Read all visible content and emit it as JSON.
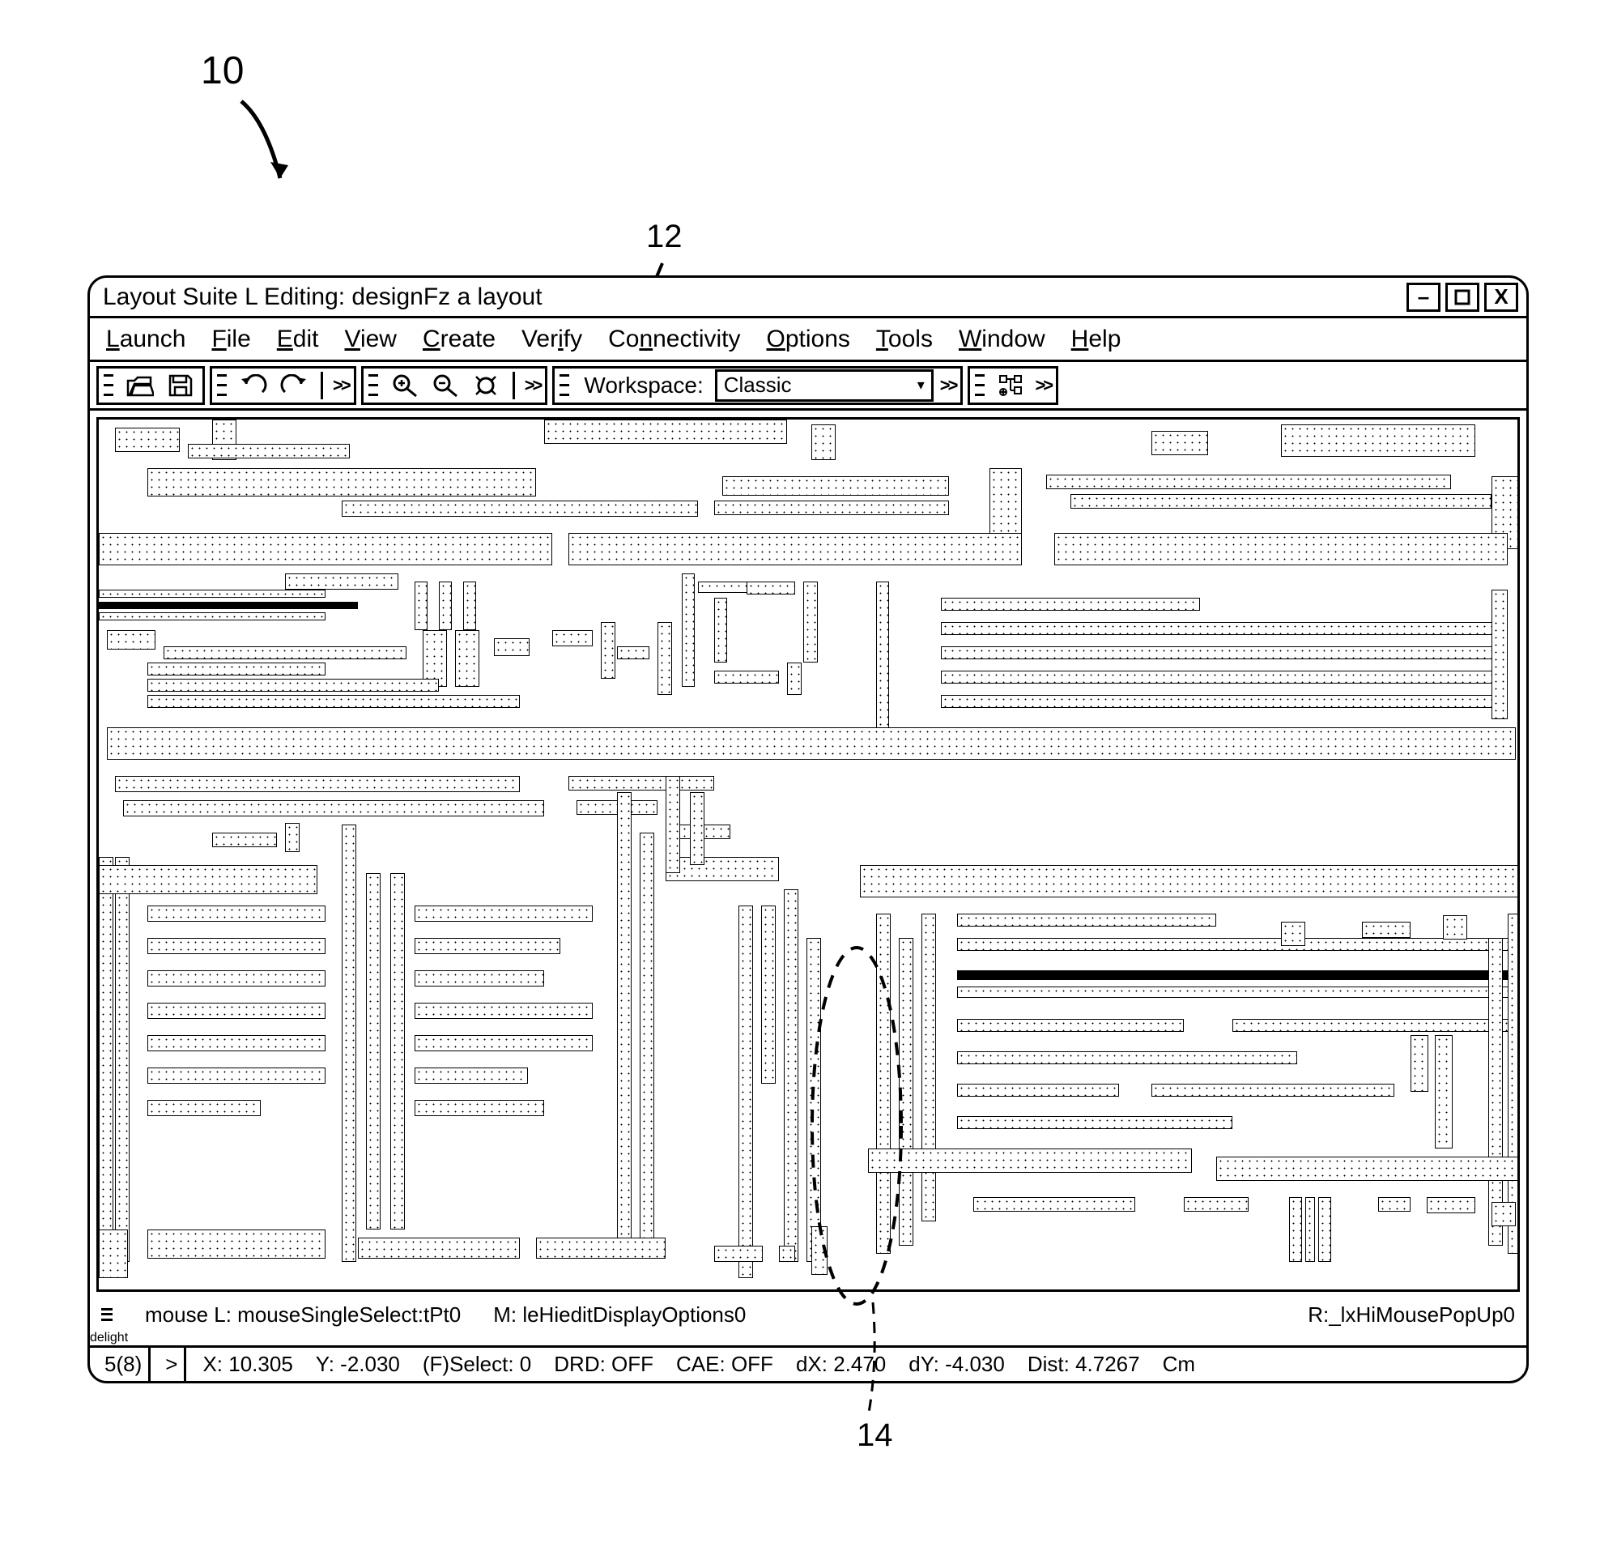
{
  "figure": {
    "callout_10": "10",
    "callout_12": "12",
    "callout_14": "14"
  },
  "window": {
    "title": "Layout Suite L Editing: designFz a layout",
    "controls": {
      "minimize": "–",
      "maximize": "□",
      "close": "X"
    }
  },
  "menubar": {
    "items": [
      {
        "label": "Launch",
        "accel": "L"
      },
      {
        "label": "File",
        "accel": "F"
      },
      {
        "label": "Edit",
        "accel": "E"
      },
      {
        "label": "View",
        "accel": "V"
      },
      {
        "label": "Create",
        "accel": "C"
      },
      {
        "label": "Verify",
        "accel": "i"
      },
      {
        "label": "Connectivity",
        "accel": "n"
      },
      {
        "label": "Options",
        "accel": "O"
      },
      {
        "label": "Tools",
        "accel": "T"
      },
      {
        "label": "Window",
        "accel": "W"
      },
      {
        "label": "Help",
        "accel": "H"
      }
    ]
  },
  "toolbar": {
    "workspace_label": "Workspace:",
    "workspace_value": "Classic",
    "overflow": ">>"
  },
  "mousebar": {
    "left": "mouse L:  mouseSingleSelect:tPt0",
    "middle": "M:  leHieditDisplayOptions0",
    "right": "R:_lxHiMousePopUp0"
  },
  "statusbar": {
    "counter": "5(8)",
    "prompt": ">",
    "x_label": "X:",
    "x_val": "10.305",
    "y_label": "Y:",
    "y_val": "-2.030",
    "select": "(F)Select: 0",
    "drd": "DRD: OFF",
    "cae": "CAE: OFF",
    "dx_label": "dX:",
    "dx_val": "2.470",
    "dy_label": "dY:",
    "dy_val": "-4.030",
    "dist_label": "Dist:",
    "dist_val": "4.7267",
    "unit": "Cm"
  },
  "layout_shapes": [
    [
      20,
      10,
      80,
      30,
      0
    ],
    [
      140,
      0,
      30,
      50,
      0
    ],
    [
      110,
      30,
      200,
      18,
      0
    ],
    [
      550,
      0,
      300,
      30,
      0
    ],
    [
      880,
      6,
      30,
      44,
      0
    ],
    [
      1300,
      14,
      70,
      30,
      0
    ],
    [
      1460,
      6,
      240,
      40,
      0
    ],
    [
      60,
      60,
      480,
      35,
      0
    ],
    [
      300,
      100,
      440,
      20,
      0
    ],
    [
      770,
      70,
      280,
      24,
      0
    ],
    [
      760,
      100,
      290,
      18,
      0
    ],
    [
      1100,
      60,
      40,
      100,
      0
    ],
    [
      1170,
      68,
      500,
      18,
      0
    ],
    [
      1200,
      92,
      520,
      18,
      0
    ],
    [
      1720,
      70,
      40,
      90,
      0
    ],
    [
      0,
      140,
      560,
      40,
      0
    ],
    [
      580,
      140,
      560,
      40,
      0
    ],
    [
      1180,
      140,
      560,
      40,
      0
    ],
    [
      230,
      190,
      140,
      20,
      0
    ],
    [
      390,
      200,
      16,
      60,
      0
    ],
    [
      420,
      200,
      16,
      60,
      0
    ],
    [
      450,
      200,
      16,
      60,
      0
    ],
    [
      720,
      190,
      16,
      140,
      0
    ],
    [
      740,
      200,
      100,
      14,
      0
    ],
    [
      760,
      220,
      16,
      80,
      0
    ],
    [
      800,
      200,
      60,
      16,
      0
    ],
    [
      870,
      200,
      18,
      100,
      0
    ],
    [
      0,
      210,
      280,
      10,
      0
    ],
    [
      0,
      225,
      320,
      9,
      1
    ],
    [
      0,
      238,
      280,
      10,
      0
    ],
    [
      10,
      260,
      60,
      24,
      0
    ],
    [
      80,
      280,
      300,
      16,
      0
    ],
    [
      400,
      260,
      30,
      70,
      0
    ],
    [
      440,
      260,
      30,
      70,
      0
    ],
    [
      488,
      270,
      44,
      22,
      0
    ],
    [
      60,
      300,
      220,
      16,
      0
    ],
    [
      60,
      320,
      360,
      16,
      0
    ],
    [
      60,
      340,
      460,
      16,
      0
    ],
    [
      560,
      260,
      50,
      20,
      0
    ],
    [
      620,
      250,
      18,
      70,
      0
    ],
    [
      640,
      280,
      40,
      16,
      0
    ],
    [
      690,
      250,
      18,
      90,
      0
    ],
    [
      760,
      310,
      80,
      16,
      0
    ],
    [
      850,
      300,
      18,
      40,
      0
    ],
    [
      960,
      200,
      16,
      210,
      0
    ],
    [
      1040,
      220,
      320,
      16,
      0
    ],
    [
      1040,
      250,
      700,
      16,
      0
    ],
    [
      1040,
      280,
      700,
      16,
      0
    ],
    [
      1040,
      310,
      700,
      16,
      0
    ],
    [
      1040,
      340,
      700,
      16,
      0
    ],
    [
      1720,
      210,
      20,
      160,
      0
    ],
    [
      10,
      380,
      1740,
      40,
      0
    ],
    [
      20,
      440,
      500,
      20,
      0
    ],
    [
      30,
      470,
      520,
      20,
      0
    ],
    [
      580,
      440,
      180,
      18,
      0
    ],
    [
      590,
      470,
      100,
      18,
      0
    ],
    [
      140,
      510,
      80,
      18,
      0
    ],
    [
      230,
      498,
      18,
      36,
      0
    ],
    [
      0,
      540,
      18,
      500,
      0
    ],
    [
      20,
      540,
      18,
      500,
      0
    ],
    [
      0,
      550,
      270,
      36,
      0
    ],
    [
      300,
      500,
      18,
      540,
      0
    ],
    [
      60,
      600,
      220,
      20,
      0
    ],
    [
      60,
      640,
      220,
      20,
      0
    ],
    [
      60,
      680,
      220,
      20,
      0
    ],
    [
      60,
      720,
      220,
      20,
      0
    ],
    [
      60,
      760,
      220,
      20,
      0
    ],
    [
      60,
      800,
      220,
      20,
      0
    ],
    [
      60,
      840,
      140,
      20,
      0
    ],
    [
      330,
      560,
      18,
      440,
      0
    ],
    [
      360,
      560,
      18,
      440,
      0
    ],
    [
      390,
      600,
      220,
      20,
      0
    ],
    [
      390,
      640,
      180,
      20,
      0
    ],
    [
      390,
      680,
      160,
      20,
      0
    ],
    [
      390,
      720,
      220,
      20,
      0
    ],
    [
      390,
      760,
      220,
      20,
      0
    ],
    [
      390,
      800,
      140,
      20,
      0
    ],
    [
      390,
      840,
      160,
      20,
      0
    ],
    [
      640,
      460,
      18,
      560,
      0
    ],
    [
      668,
      510,
      18,
      510,
      0
    ],
    [
      700,
      500,
      80,
      18,
      0
    ],
    [
      700,
      540,
      140,
      30,
      0
    ],
    [
      700,
      440,
      18,
      120,
      0
    ],
    [
      730,
      460,
      18,
      90,
      0
    ],
    [
      790,
      600,
      18,
      460,
      0
    ],
    [
      818,
      600,
      18,
      220,
      0
    ],
    [
      846,
      580,
      18,
      460,
      0
    ],
    [
      874,
      640,
      18,
      400,
      0
    ],
    [
      940,
      550,
      820,
      40,
      0
    ],
    [
      960,
      610,
      18,
      420,
      0
    ],
    [
      988,
      640,
      18,
      380,
      0
    ],
    [
      1016,
      610,
      18,
      380,
      0
    ],
    [
      1060,
      610,
      320,
      16,
      0
    ],
    [
      1060,
      640,
      700,
      16,
      0
    ],
    [
      1060,
      680,
      700,
      12,
      1
    ],
    [
      1060,
      700,
      700,
      14,
      0
    ],
    [
      1060,
      740,
      280,
      16,
      0
    ],
    [
      1400,
      740,
      360,
      16,
      0
    ],
    [
      1060,
      780,
      420,
      16,
      0
    ],
    [
      1060,
      820,
      200,
      16,
      0
    ],
    [
      1300,
      820,
      300,
      16,
      0
    ],
    [
      1060,
      860,
      340,
      16,
      0
    ],
    [
      1740,
      610,
      18,
      420,
      0
    ],
    [
      1716,
      640,
      18,
      380,
      0
    ],
    [
      1620,
      760,
      22,
      70,
      0
    ],
    [
      1650,
      760,
      22,
      140,
      0
    ],
    [
      1460,
      620,
      30,
      30,
      0
    ],
    [
      1560,
      620,
      60,
      20,
      0
    ],
    [
      1660,
      612,
      30,
      30,
      0
    ],
    [
      950,
      900,
      400,
      30,
      0
    ],
    [
      1380,
      910,
      380,
      30,
      0
    ],
    [
      1080,
      960,
      200,
      18,
      0
    ],
    [
      1340,
      960,
      80,
      18,
      0
    ],
    [
      1470,
      960,
      16,
      80,
      0
    ],
    [
      1490,
      960,
      12,
      80,
      0
    ],
    [
      1506,
      960,
      16,
      80,
      0
    ],
    [
      1580,
      960,
      40,
      18,
      0
    ],
    [
      1640,
      960,
      60,
      20,
      0
    ],
    [
      1720,
      966,
      30,
      30,
      0
    ],
    [
      0,
      1000,
      36,
      60,
      0
    ],
    [
      60,
      1000,
      220,
      36,
      0
    ],
    [
      320,
      1010,
      200,
      26,
      0
    ],
    [
      540,
      1010,
      160,
      26,
      0
    ],
    [
      760,
      1020,
      60,
      20,
      0
    ],
    [
      840,
      1020,
      20,
      20,
      0
    ],
    [
      880,
      996,
      20,
      60,
      0
    ]
  ]
}
